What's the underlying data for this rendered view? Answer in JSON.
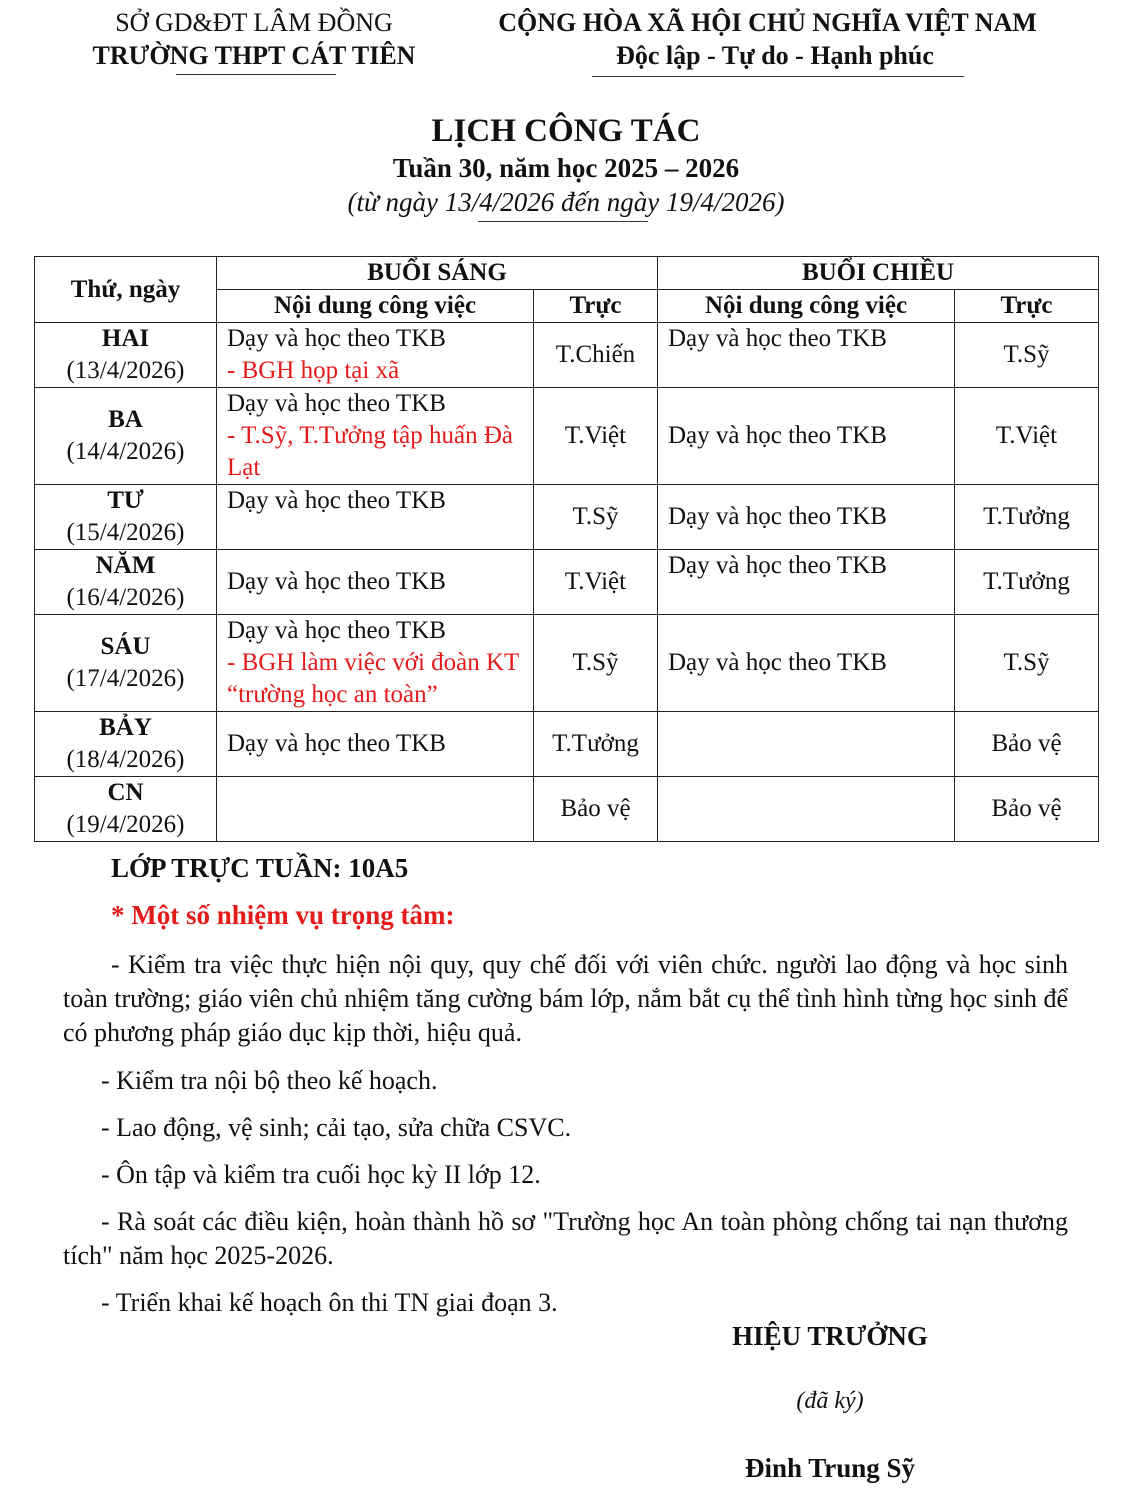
{
  "header": {
    "left_line1": "SỞ GD&ĐT LÂM ĐỒNG",
    "left_line2": "TRƯỜNG THPT CÁT TIÊN",
    "right_line1": "CỘNG HÒA XÃ HỘI CHỦ NGHĨA VIỆT NAM",
    "right_line2": "Độc lập - Tự do - Hạnh phúc"
  },
  "title": {
    "main": "LỊCH CÔNG TÁC",
    "week": "Tuần 30, năm học 2025 – 2026",
    "range": "(từ ngày 13/4/2026 đến ngày 19/4/2026)"
  },
  "table": {
    "col_day": "Thứ, ngày",
    "morning": "BUỔI SÁNG",
    "afternoon": "BUỔI CHIỀU",
    "content": "Nội dung công việc",
    "duty": "Trực",
    "rows": [
      {
        "day": "HAI",
        "date": "(13/4/2026)",
        "am": "Dạy và học theo TKB",
        "am_note": "- BGH họp tại xã",
        "am_duty": "T.Chiến",
        "pm": "Dạy và học theo TKB",
        "pm_duty": "T.Sỹ"
      },
      {
        "day": "BA",
        "date": "(14/4/2026)",
        "am": "Dạy và học theo TKB",
        "am_note": "- T.Sỹ, T.Tưởng tập huấn Đà Lạt",
        "am_duty": "T.Việt",
        "pm": "Dạy và học theo TKB",
        "pm_duty": "T.Việt"
      },
      {
        "day": "TƯ",
        "date": "(15/4/2026)",
        "am": "Dạy và học theo TKB",
        "am_note": "",
        "am_duty": "T.Sỹ",
        "pm": "Dạy và học theo TKB",
        "pm_duty": "T.Tưởng"
      },
      {
        "day": "NĂM",
        "date": "(16/4/2026)",
        "am": "Dạy và học theo TKB",
        "am_note": "",
        "am_duty": "T.Việt",
        "pm": "Dạy và học theo TKB",
        "pm_duty": "T.Tưởng"
      },
      {
        "day": "SÁU",
        "date": "(17/4/2026)",
        "am": "Dạy và học theo TKB",
        "am_note": "- BGH làm việc với đoàn KT “trường học an toàn”",
        "am_duty": "T.Sỹ",
        "pm": "Dạy và học theo TKB",
        "pm_duty": "T.Sỹ"
      },
      {
        "day": "BẢY",
        "date": "(18/4/2026)",
        "am": "Dạy và học theo TKB",
        "am_note": "",
        "am_duty": "T.Tưởng",
        "pm": "",
        "pm_duty": "Bảo vệ"
      },
      {
        "day": "CN",
        "date": "(19/4/2026)",
        "am": "",
        "am_note": "",
        "am_duty": "Bảo vệ",
        "pm": "",
        "pm_duty": "Bảo vệ"
      }
    ]
  },
  "duty_class": "LỚP TRỰC TUẦN: 10A5",
  "tasks_heading": "* Một số nhiệm vụ trọng tâm:",
  "tasks": [
    "- Kiểm tra việc thực hiện nội quy, quy chế đối với viên chức. người lao động và học sinh toàn trường; giáo viên chủ nhiệm tăng cường bám lớp, nắm bắt cụ thể tình hình từng học sinh để có phương pháp giáo dục kịp thời, hiệu quả.",
    "- Kiểm tra nội bộ theo kế hoạch.",
    "- Lao động, vệ sinh; cải tạo, sửa chữa CSVC.",
    "- Ôn tập và kiểm tra cuối học kỳ II lớp 12.",
    "- Rà soát các điều kiện, hoàn thành hồ sơ \"Trường học An toàn phòng chống tai nạn thương tích\" năm học 2025-2026.",
    "- Triển khai kế hoạch ôn thi TN giai đoạn 3."
  ],
  "signature": {
    "role": "HIỆU TRƯỞNG",
    "signed": "(đã ký)",
    "name": "Đinh Trung Sỹ"
  },
  "colors": {
    "highlight": "#e31b1b"
  }
}
